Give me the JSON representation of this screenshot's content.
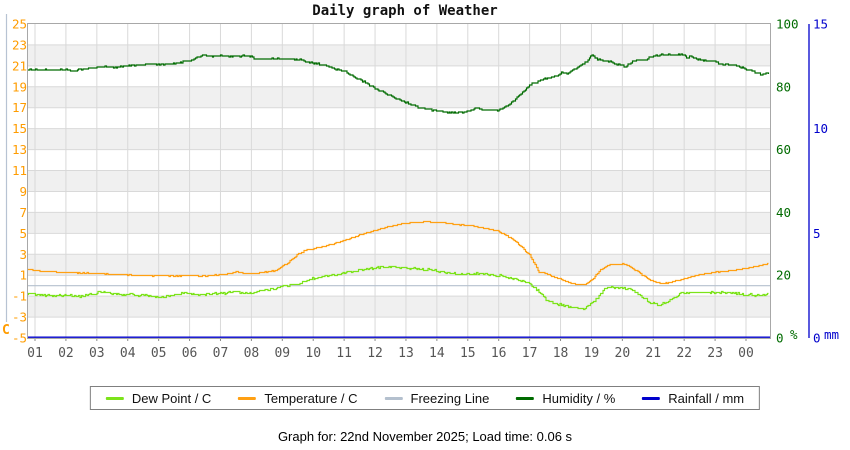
{
  "title": "Daily graph of Weather",
  "footer": "Graph for: 22nd November 2025; Load time: 0.06 s",
  "colors": {
    "plot_band": "#f0f0f0",
    "grid_line": "#d9d9d9",
    "plot_border": "#a8a8a8",
    "left_axis_line": "#b7c3d3",
    "x_label": "#555555",
    "dew_point": "#7ce31a",
    "temperature": "#ffa013",
    "freezing_line": "#b4c0ce",
    "humidity": "#006b00",
    "rainfall": "#0000cc",
    "left_tick_label": "#ff9c00"
  },
  "chart_data": {
    "type": "line",
    "title": "Daily graph of Weather",
    "x_axis": {
      "tick_labels": [
        "01",
        "02",
        "03",
        "04",
        "05",
        "06",
        "07",
        "08",
        "09",
        "10",
        "11",
        "12",
        "13",
        "14",
        "15",
        "16",
        "17",
        "18",
        "19",
        "20",
        "21",
        "22",
        "23",
        "00"
      ],
      "range_hours": [
        0.75,
        24.77
      ],
      "grid": true
    },
    "y_axis_left": {
      "title": "C",
      "ticks": [
        25,
        23,
        21,
        19,
        17,
        15,
        13,
        11,
        9,
        7,
        5,
        3,
        1,
        -1,
        -3,
        -5
      ],
      "range": [
        -5,
        25
      ],
      "color": "#ff9c00"
    },
    "y_axis_humidity": {
      "title": "%",
      "ticks": [
        100,
        80,
        60,
        40,
        20,
        0
      ],
      "range": [
        0,
        100
      ],
      "color": "#006b00"
    },
    "y_axis_rain": {
      "title": "mm",
      "ticks": [
        15,
        10,
        5,
        0
      ],
      "range": [
        0,
        15
      ],
      "color": "#0000cc"
    },
    "legend_position": "bottom",
    "series": [
      {
        "name": "Dew Point / C",
        "axis": "left",
        "color": "#7ce31a",
        "points": [
          [
            0.75,
            -0.75
          ],
          [
            1.0,
            -0.85
          ],
          [
            1.5,
            -1.0
          ],
          [
            2.0,
            -0.9
          ],
          [
            2.5,
            -1.05
          ],
          [
            3.0,
            -0.75
          ],
          [
            3.1,
            -0.6
          ],
          [
            3.5,
            -0.8
          ],
          [
            4.2,
            -0.9
          ],
          [
            4.8,
            -1.0
          ],
          [
            5.1,
            -1.1
          ],
          [
            5.5,
            -0.9
          ],
          [
            5.9,
            -0.72
          ],
          [
            6.3,
            -0.95
          ],
          [
            6.8,
            -0.8
          ],
          [
            7.4,
            -0.65
          ],
          [
            8.0,
            -0.7
          ],
          [
            8.5,
            -0.4
          ],
          [
            9.0,
            -0.1
          ],
          [
            9.5,
            0.1
          ],
          [
            9.8,
            0.5
          ],
          [
            10.2,
            0.8
          ],
          [
            10.8,
            1.1
          ],
          [
            11.3,
            1.35
          ],
          [
            11.9,
            1.6
          ],
          [
            12.3,
            1.8
          ],
          [
            13.0,
            1.7
          ],
          [
            13.7,
            1.5
          ],
          [
            14.3,
            1.25
          ],
          [
            14.8,
            1.1
          ],
          [
            15.5,
            1.15
          ],
          [
            16.1,
            0.9
          ],
          [
            16.7,
            0.5
          ],
          [
            17.1,
            0.0
          ],
          [
            17.6,
            -1.55
          ],
          [
            18.0,
            -1.85
          ],
          [
            18.4,
            -2.15
          ],
          [
            18.8,
            -2.2
          ],
          [
            19.1,
            -1.5
          ],
          [
            19.5,
            -0.15
          ],
          [
            20.0,
            -0.25
          ],
          [
            20.3,
            -0.4
          ],
          [
            20.9,
            -1.6
          ],
          [
            21.2,
            -1.85
          ],
          [
            21.6,
            -1.4
          ],
          [
            21.9,
            -0.7
          ],
          [
            22.3,
            -0.68
          ],
          [
            23.0,
            -0.65
          ],
          [
            23.5,
            -0.7
          ],
          [
            24.0,
            -0.85
          ],
          [
            24.4,
            -0.95
          ],
          [
            24.77,
            -0.85
          ]
        ]
      },
      {
        "name": "Temperature / C",
        "axis": "left",
        "color": "#ffa013",
        "points": [
          [
            0.75,
            1.55
          ],
          [
            1.2,
            1.35
          ],
          [
            2.0,
            1.25
          ],
          [
            3.0,
            1.15
          ],
          [
            4.0,
            1.0
          ],
          [
            4.5,
            0.95
          ],
          [
            5.5,
            0.9
          ],
          [
            6.0,
            0.95
          ],
          [
            6.5,
            0.9
          ],
          [
            7.2,
            1.1
          ],
          [
            7.5,
            1.3
          ],
          [
            7.8,
            1.15
          ],
          [
            8.3,
            1.2
          ],
          [
            8.8,
            1.45
          ],
          [
            9.2,
            2.2
          ],
          [
            9.5,
            3.0
          ],
          [
            9.8,
            3.4
          ],
          [
            10.3,
            3.7
          ],
          [
            10.8,
            4.1
          ],
          [
            11.3,
            4.6
          ],
          [
            11.8,
            5.1
          ],
          [
            12.3,
            5.5
          ],
          [
            12.7,
            5.8
          ],
          [
            13.2,
            6.0
          ],
          [
            13.7,
            6.1
          ],
          [
            14.2,
            6.0
          ],
          [
            14.7,
            5.8
          ],
          [
            15.2,
            5.65
          ],
          [
            15.7,
            5.4
          ],
          [
            16.0,
            5.2
          ],
          [
            16.4,
            4.5
          ],
          [
            16.7,
            3.8
          ],
          [
            17.0,
            2.9
          ],
          [
            17.3,
            1.3
          ],
          [
            17.6,
            1.05
          ],
          [
            18.0,
            0.6
          ],
          [
            18.4,
            0.15
          ],
          [
            18.8,
            0.1
          ],
          [
            19.0,
            0.5
          ],
          [
            19.3,
            1.5
          ],
          [
            19.6,
            2.0
          ],
          [
            20.0,
            2.05
          ],
          [
            20.2,
            1.9
          ],
          [
            20.5,
            1.3
          ],
          [
            20.9,
            0.5
          ],
          [
            21.2,
            0.2
          ],
          [
            21.5,
            0.25
          ],
          [
            21.8,
            0.5
          ],
          [
            22.2,
            0.8
          ],
          [
            22.6,
            1.1
          ],
          [
            23.0,
            1.25
          ],
          [
            23.4,
            1.4
          ],
          [
            23.9,
            1.6
          ],
          [
            24.3,
            1.8
          ],
          [
            24.77,
            2.1
          ]
        ]
      },
      {
        "name": "Freezing Line",
        "axis": "left",
        "color": "#b4c0ce",
        "points": [
          [
            0.75,
            0
          ],
          [
            24.77,
            0
          ]
        ]
      },
      {
        "name": "Humidity / %",
        "axis": "humidity",
        "color": "#006b00",
        "points": [
          [
            0.75,
            85.4
          ],
          [
            2.1,
            85.4
          ],
          [
            2.25,
            84.9
          ],
          [
            2.4,
            85.4
          ],
          [
            2.9,
            86.1
          ],
          [
            3.3,
            86.4
          ],
          [
            3.6,
            86.1
          ],
          [
            4.0,
            86.8
          ],
          [
            4.5,
            87.2
          ],
          [
            5.4,
            87.2
          ],
          [
            5.7,
            87.8
          ],
          [
            6.0,
            88.3
          ],
          [
            6.3,
            89.5
          ],
          [
            6.45,
            90.2
          ],
          [
            6.6,
            89.8
          ],
          [
            8.0,
            89.8
          ],
          [
            8.1,
            88.9
          ],
          [
            9.25,
            88.9
          ],
          [
            9.6,
            88.5
          ],
          [
            10.0,
            87.6
          ],
          [
            10.4,
            86.8
          ],
          [
            10.7,
            85.7
          ],
          [
            11.0,
            85.0
          ],
          [
            11.4,
            82.8
          ],
          [
            12.1,
            79.0
          ],
          [
            12.7,
            76.2
          ],
          [
            13.4,
            73.5
          ],
          [
            14.0,
            72.3
          ],
          [
            14.4,
            71.8
          ],
          [
            14.9,
            72.0
          ],
          [
            15.3,
            73.2
          ],
          [
            15.6,
            72.6
          ],
          [
            16.0,
            72.6
          ],
          [
            16.3,
            74.0
          ],
          [
            16.7,
            77.5
          ],
          [
            17.0,
            80.5
          ],
          [
            17.4,
            82.3
          ],
          [
            17.9,
            83.4
          ],
          [
            18.05,
            84.6
          ],
          [
            18.2,
            84.2
          ],
          [
            18.6,
            86.5
          ],
          [
            18.9,
            88.3
          ],
          [
            19.0,
            90.5
          ],
          [
            19.15,
            89.0
          ],
          [
            19.5,
            88.2
          ],
          [
            19.9,
            87.0
          ],
          [
            20.1,
            86.4
          ],
          [
            20.35,
            88.3
          ],
          [
            20.8,
            88.8
          ],
          [
            21.0,
            90.0
          ],
          [
            21.5,
            90.2
          ],
          [
            22.0,
            90.2
          ],
          [
            22.1,
            89.0
          ],
          [
            22.2,
            90.0
          ],
          [
            22.4,
            88.6
          ],
          [
            23.0,
            88.2
          ],
          [
            23.1,
            87.3
          ],
          [
            23.6,
            87.0
          ],
          [
            23.9,
            86.0
          ],
          [
            24.2,
            85.0
          ],
          [
            24.5,
            83.8
          ],
          [
            24.65,
            84.5
          ],
          [
            24.77,
            84.3
          ]
        ]
      },
      {
        "name": "Rainfall / mm",
        "axis": "rain",
        "color": "#0000cc",
        "points": [
          [
            0.75,
            0
          ],
          [
            24.77,
            0
          ]
        ]
      }
    ],
    "legend": {
      "items": [
        {
          "label": "Dew Point / C",
          "color": "#7ce31a"
        },
        {
          "label": "Temperature / C",
          "color": "#ffa013"
        },
        {
          "label": "Freezing Line",
          "color": "#b4c0ce"
        },
        {
          "label": "Humidity / %",
          "color": "#006b00"
        },
        {
          "label": "Rainfall / mm",
          "color": "#0000cc"
        }
      ]
    }
  }
}
